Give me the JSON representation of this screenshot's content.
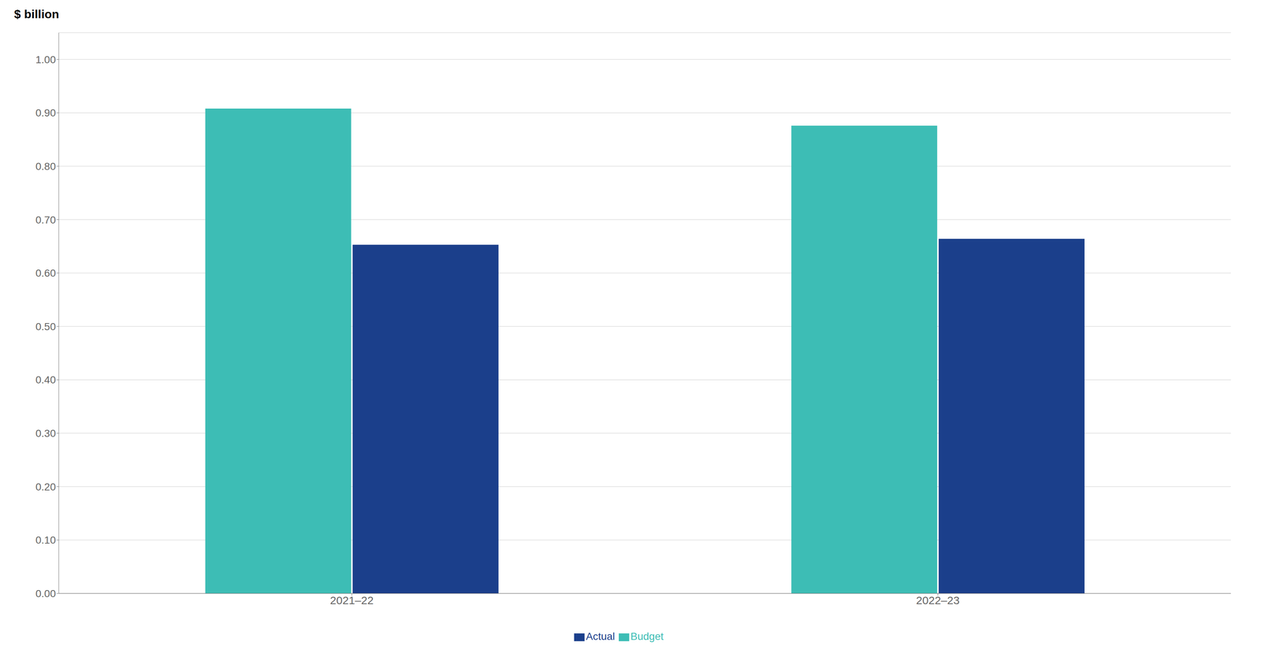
{
  "chart_data": {
    "type": "bar",
    "y_label": "$ billion",
    "categories": [
      "2021–22",
      "2022–23"
    ],
    "series": [
      {
        "name": "Budget",
        "color": "#3DBDB5",
        "values": [
          0.908,
          0.876
        ]
      },
      {
        "name": "Actual",
        "color": "#1B3F8B",
        "values": [
          0.653,
          0.664
        ]
      }
    ],
    "ylim": [
      0.0,
      1.05
    ],
    "yticks": [
      {
        "value": 0.0,
        "label": "0.00"
      },
      {
        "value": 0.1,
        "label": "0.10"
      },
      {
        "value": 0.2,
        "label": "0.20"
      },
      {
        "value": 0.3,
        "label": "0.30"
      },
      {
        "value": 0.4,
        "label": "0.40"
      },
      {
        "value": 0.5,
        "label": "0.50"
      },
      {
        "value": 0.6,
        "label": "0.60"
      },
      {
        "value": 0.7,
        "label": "0.70"
      },
      {
        "value": 0.8,
        "label": "0.80"
      },
      {
        "value": 0.9,
        "label": "0.90"
      },
      {
        "value": 1.0,
        "label": "1.00"
      }
    ],
    "grid": true,
    "legend": "bottom"
  }
}
